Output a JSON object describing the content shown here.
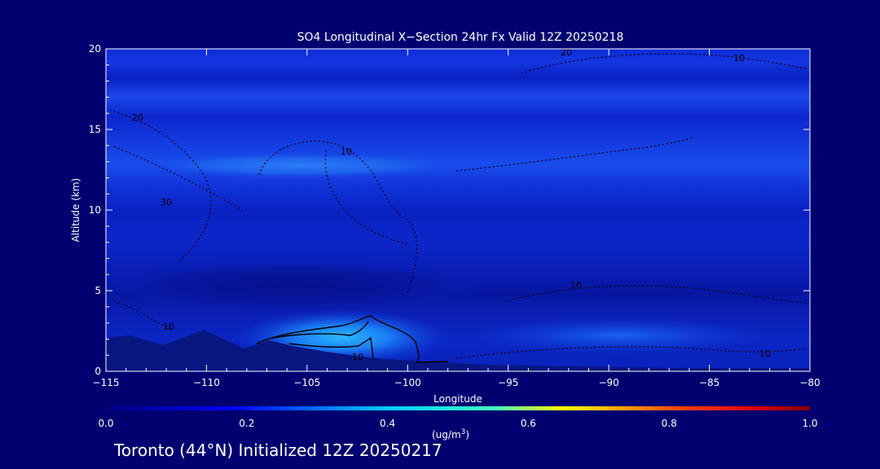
{
  "chart_data": {
    "type": "heatmap",
    "title": "SO4 Longitudinal X−Section 24hr  Fx Valid 12Z 20250218",
    "xlabel": "Longitude",
    "ylabel": "Altitude (km)",
    "xlim": [
      -115,
      -80
    ],
    "ylim": [
      0,
      20
    ],
    "x_ticks": [
      -115,
      -110,
      -105,
      -100,
      -95,
      -90,
      -85,
      -80
    ],
    "x_tick_labels": [
      "−115",
      "−110",
      "−105",
      "−100",
      "−95",
      "−90",
      "−85",
      "−80"
    ],
    "y_ticks": [
      0,
      5,
      10,
      15,
      20
    ],
    "y_tick_labels": [
      "0",
      "5",
      "10",
      "15",
      "20"
    ],
    "colorbar": {
      "min": 0.0,
      "max": 1.0,
      "ticks": [
        0.0,
        0.2,
        0.4,
        0.6,
        0.8,
        1.0
      ],
      "tick_labels": [
        "0.0",
        "0.2",
        "0.4",
        "0.6",
        "0.8",
        "1.0"
      ],
      "unit_text": "(ug/m",
      "unit_sup": "3",
      "unit_close": ")",
      "colors": [
        "#000080",
        "#0000ff",
        "#00ffff",
        "#ffff00",
        "#ff0000",
        "#800000"
      ]
    },
    "background_band_values": [
      {
        "z_range": [
          0,
          2
        ],
        "value": 0.1
      },
      {
        "z_range": [
          2,
          4
        ],
        "value": 0.06
      },
      {
        "z_range": [
          4,
          7
        ],
        "value": 0.1
      },
      {
        "z_range": [
          7,
          11
        ],
        "value": 0.09
      },
      {
        "z_range": [
          11,
          14
        ],
        "value": 0.13
      },
      {
        "z_range": [
          14,
          16
        ],
        "value": 0.09
      },
      {
        "z_range": [
          16,
          20
        ],
        "value": 0.1
      }
    ],
    "features": [
      {
        "name": "upper layer maximum",
        "lon_range": [
          -113,
          -102
        ],
        "z_range": [
          12,
          13.2
        ],
        "value": 0.2
      },
      {
        "name": "lower tropospheric plume",
        "lon_range": [
          -107,
          -97
        ],
        "z_range": [
          0.8,
          3
        ],
        "value": 0.35
      },
      {
        "name": "eastern low-level band",
        "lon_range": [
          -95,
          -83
        ],
        "z_range": [
          1,
          3
        ],
        "value": 0.17
      },
      {
        "name": "mid-level minimum",
        "lon_range": [
          -111,
          -96
        ],
        "z_range": [
          4.5,
          6.5
        ],
        "value": 0.04
      }
    ],
    "contour_labels": [
      "20",
      "10",
      "20",
      "10",
      "30",
      "10",
      "10",
      "10",
      "10"
    ]
  },
  "footer": {
    "text": "Toronto (44°N) Initialized 12Z 20250217"
  }
}
